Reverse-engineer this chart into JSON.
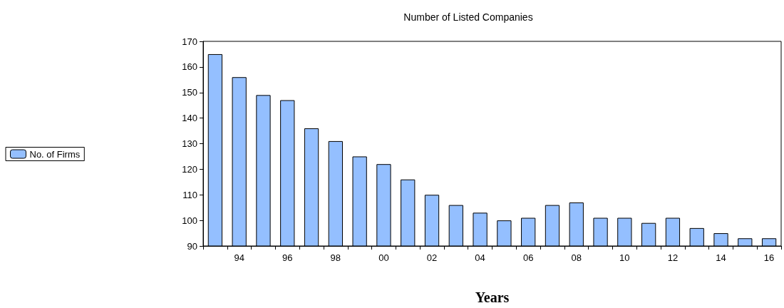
{
  "chart_data": {
    "type": "bar",
    "title": "Number of Listed Companies",
    "xlabel": "Years",
    "categories": [
      null,
      "94",
      null,
      "96",
      null,
      "98",
      null,
      "00",
      null,
      "02",
      null,
      "04",
      null,
      "06",
      null,
      "08",
      null,
      "10",
      null,
      "12",
      null,
      "14",
      null,
      "16"
    ],
    "series": [
      {
        "name": "No. of Firms",
        "color": "#94bfff",
        "values": [
          165,
          156,
          149,
          147,
          136,
          131,
          125,
          122,
          116,
          110,
          106,
          103,
          100,
          101,
          106,
          107,
          101,
          101,
          99,
          101,
          97,
          95,
          93,
          93
        ]
      }
    ],
    "ylim": [
      90,
      170
    ],
    "yticks": [
      90,
      100,
      110,
      120,
      130,
      140,
      150,
      160,
      170
    ],
    "grid": false,
    "legend": "left"
  }
}
